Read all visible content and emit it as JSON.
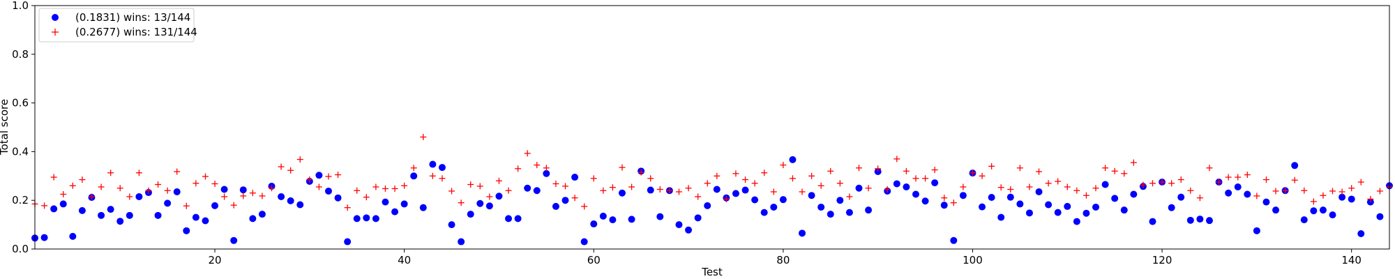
{
  "chart_data": {
    "type": "scatter",
    "xlabel": "Test",
    "ylabel": "Total score",
    "xlim": [
      1,
      144
    ],
    "ylim": [
      0.0,
      1.0
    ],
    "x_ticks": [
      20,
      40,
      60,
      80,
      100,
      120,
      140
    ],
    "x_tick_labels": [
      "20",
      "40",
      "60",
      "80",
      "100",
      "120",
      "140"
    ],
    "y_ticks": [
      0.0,
      0.2,
      0.4,
      0.6,
      0.8,
      1.0
    ],
    "y_tick_labels": [
      "0.0",
      "0.2",
      "0.4",
      "0.6",
      "0.8",
      "1.0"
    ],
    "grid": false,
    "legend_position": "top-left",
    "x": [
      1,
      2,
      3,
      4,
      5,
      6,
      7,
      8,
      9,
      10,
      11,
      12,
      13,
      14,
      15,
      16,
      17,
      18,
      19,
      20,
      21,
      22,
      23,
      24,
      25,
      26,
      27,
      28,
      29,
      30,
      31,
      32,
      33,
      34,
      35,
      36,
      37,
      38,
      39,
      40,
      41,
      42,
      43,
      44,
      45,
      46,
      47,
      48,
      49,
      50,
      51,
      52,
      53,
      54,
      55,
      56,
      57,
      58,
      59,
      60,
      61,
      62,
      63,
      64,
      65,
      66,
      67,
      68,
      69,
      70,
      71,
      72,
      73,
      74,
      75,
      76,
      77,
      78,
      79,
      80,
      81,
      82,
      83,
      84,
      85,
      86,
      87,
      88,
      89,
      90,
      91,
      92,
      93,
      94,
      95,
      96,
      97,
      98,
      99,
      100,
      101,
      102,
      103,
      104,
      105,
      106,
      107,
      108,
      109,
      110,
      111,
      112,
      113,
      114,
      115,
      116,
      117,
      118,
      119,
      120,
      121,
      122,
      123,
      124,
      125,
      126,
      127,
      128,
      129,
      130,
      131,
      132,
      133,
      134,
      135,
      136,
      137,
      138,
      139,
      140,
      141,
      142,
      143,
      144
    ],
    "series": [
      {
        "name": "(0.1831) wins: 13/144",
        "marker": "circle",
        "color": "#0000ff",
        "values": [
          0.045,
          0.047,
          0.165,
          0.185,
          0.052,
          0.158,
          0.212,
          0.138,
          0.163,
          0.114,
          0.138,
          0.215,
          0.232,
          0.138,
          0.188,
          0.235,
          0.075,
          0.13,
          0.116,
          0.178,
          0.245,
          0.035,
          0.243,
          0.125,
          0.143,
          0.258,
          0.215,
          0.198,
          0.182,
          0.278,
          0.303,
          0.238,
          0.21,
          0.03,
          0.125,
          0.128,
          0.125,
          0.193,
          0.153,
          0.185,
          0.3,
          0.17,
          0.348,
          0.335,
          0.1,
          0.03,
          0.143,
          0.187,
          0.177,
          0.217,
          0.125,
          0.125,
          0.25,
          0.24,
          0.31,
          0.175,
          0.2,
          0.295,
          0.03,
          0.103,
          0.135,
          0.12,
          0.23,
          0.122,
          0.32,
          0.242,
          0.133,
          0.24,
          0.1,
          0.078,
          0.128,
          0.178,
          0.245,
          0.21,
          0.228,
          0.242,
          0.202,
          0.15,
          0.172,
          0.203,
          0.367,
          0.065,
          0.22,
          0.172,
          0.143,
          0.2,
          0.15,
          0.25,
          0.16,
          0.318,
          0.238,
          0.268,
          0.255,
          0.225,
          0.197,
          0.272,
          0.18,
          0.035,
          0.22,
          0.312,
          0.173,
          0.212,
          0.13,
          0.213,
          0.185,
          0.148,
          0.235,
          0.182,
          0.15,
          0.175,
          0.113,
          0.147,
          0.172,
          0.265,
          0.208,
          0.16,
          0.225,
          0.257,
          0.113,
          0.275,
          0.17,
          0.213,
          0.118,
          0.123,
          0.117,
          0.275,
          0.23,
          0.255,
          0.225,
          0.075,
          0.193,
          0.16,
          0.24,
          0.343,
          0.12,
          0.157,
          0.16,
          0.14,
          0.213,
          0.205,
          0.063,
          0.193,
          0.133,
          0.26
        ]
      },
      {
        "name": "(0.2677) wins: 131/144",
        "marker": "plus",
        "color": "#ff0000",
        "values": [
          0.185,
          0.178,
          0.295,
          0.225,
          0.26,
          0.285,
          0.215,
          0.255,
          0.313,
          0.25,
          0.215,
          0.313,
          0.24,
          0.265,
          0.24,
          0.318,
          0.177,
          0.27,
          0.298,
          0.268,
          0.215,
          0.18,
          0.218,
          0.23,
          0.218,
          0.25,
          0.338,
          0.323,
          0.368,
          0.285,
          0.255,
          0.298,
          0.305,
          0.17,
          0.24,
          0.213,
          0.255,
          0.248,
          0.248,
          0.26,
          0.333,
          0.46,
          0.3,
          0.29,
          0.238,
          0.19,
          0.265,
          0.258,
          0.215,
          0.28,
          0.24,
          0.33,
          0.393,
          0.345,
          0.333,
          0.268,
          0.258,
          0.21,
          0.175,
          0.29,
          0.24,
          0.253,
          0.335,
          0.255,
          0.315,
          0.29,
          0.245,
          0.24,
          0.235,
          0.25,
          0.215,
          0.27,
          0.3,
          0.205,
          0.31,
          0.285,
          0.27,
          0.313,
          0.235,
          0.345,
          0.29,
          0.235,
          0.3,
          0.26,
          0.32,
          0.27,
          0.215,
          0.333,
          0.25,
          0.33,
          0.245,
          0.37,
          0.32,
          0.29,
          0.29,
          0.325,
          0.21,
          0.19,
          0.255,
          0.313,
          0.3,
          0.34,
          0.253,
          0.245,
          0.333,
          0.255,
          0.318,
          0.27,
          0.278,
          0.255,
          0.24,
          0.22,
          0.25,
          0.333,
          0.32,
          0.31,
          0.355,
          0.263,
          0.27,
          0.275,
          0.27,
          0.285,
          0.24,
          0.21,
          0.333,
          0.275,
          0.295,
          0.295,
          0.305,
          0.218,
          0.285,
          0.238,
          0.24,
          0.283,
          0.24,
          0.195,
          0.22,
          0.238,
          0.235,
          0.25,
          0.275,
          0.205,
          0.238,
          0.255
        ]
      }
    ]
  }
}
